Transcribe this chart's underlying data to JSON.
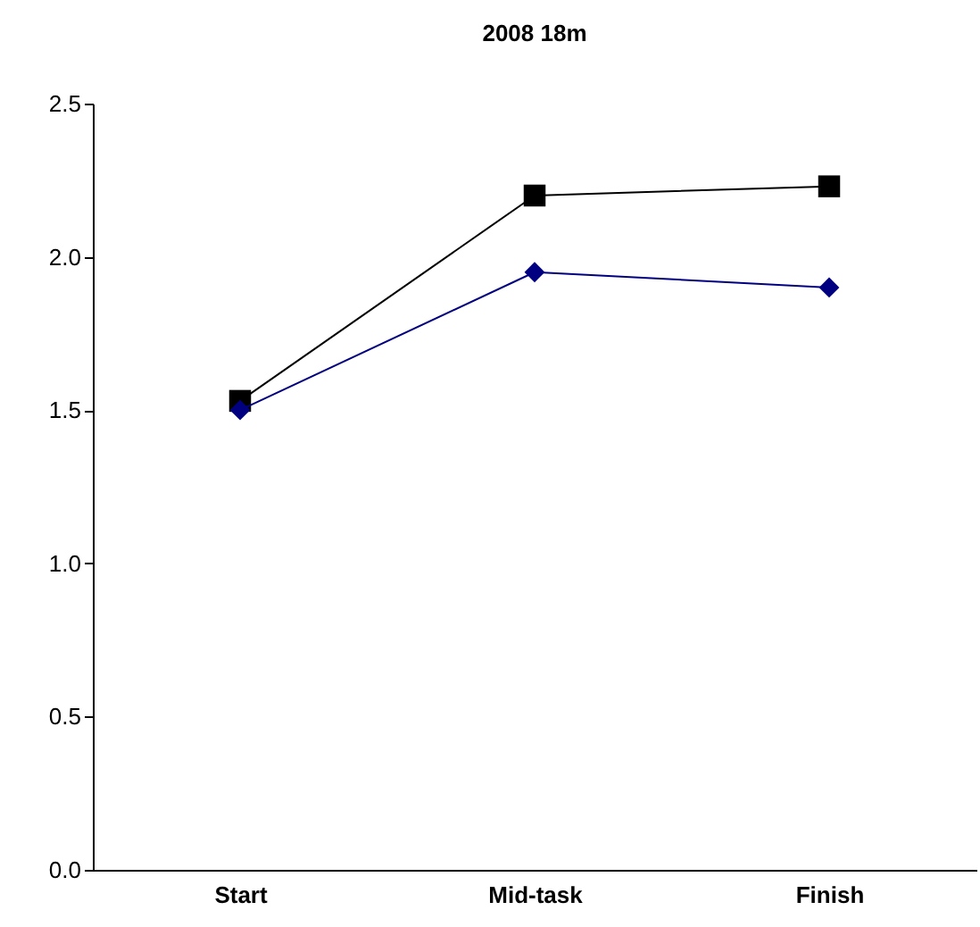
{
  "chart_data": {
    "type": "line",
    "title": "2008 18m",
    "categories": [
      "Start",
      "Mid-task",
      "Finish"
    ],
    "series": [
      {
        "color": "#000000",
        "marker": "square",
        "values": [
          1.53,
          2.2,
          2.23
        ]
      },
      {
        "color": "#000080",
        "marker": "diamond",
        "values": [
          1.5,
          1.95,
          1.9
        ]
      }
    ],
    "ylim": [
      0,
      2.5
    ],
    "yticks": [
      {
        "value": 0,
        "label": "0.0"
      },
      {
        "value": 0.5,
        "label": "0.5"
      },
      {
        "value": 1,
        "label": "1.0"
      },
      {
        "value": 1.5,
        "label": "1.5"
      },
      {
        "value": 2,
        "label": "2.0"
      },
      {
        "value": 2.5,
        "label": "2.5"
      }
    ],
    "grid": false
  }
}
